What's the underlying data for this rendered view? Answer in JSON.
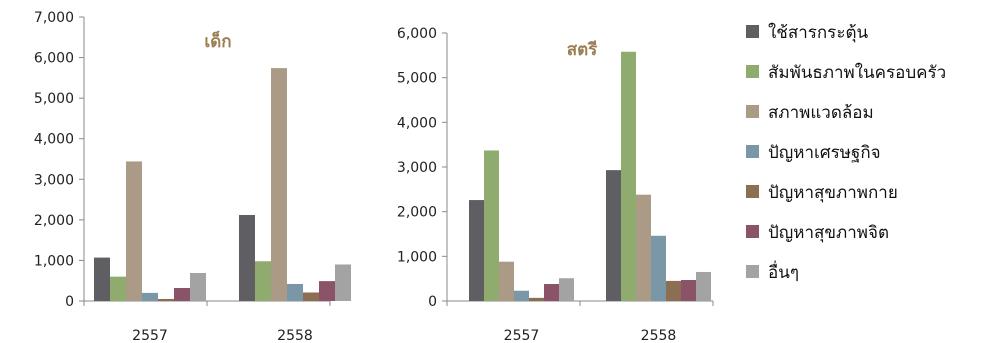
{
  "chart_data": [
    {
      "type": "bar",
      "title": "เด็ก",
      "categories": [
        "2557",
        "2558"
      ],
      "ylim": [
        0,
        7000
      ],
      "yticks": [
        "0",
        "1,000",
        "2,000",
        "3,000",
        "4,000",
        "5,000",
        "6,000",
        "7,000"
      ],
      "series": [
        {
          "name": "ใช้สารกระตุ้น",
          "values": [
            1070,
            2120
          ]
        },
        {
          "name": "สัมพันธภาพในครอบครัว",
          "values": [
            600,
            980
          ]
        },
        {
          "name": "สภาพแวดล้อม",
          "values": [
            3440,
            5740
          ]
        },
        {
          "name": "ปัญหาเศรษฐกิจ",
          "values": [
            200,
            420
          ]
        },
        {
          "name": "ปัญหาสุขภาพกาย",
          "values": [
            50,
            210
          ]
        },
        {
          "name": "ปัญหาสุขภาพจิต",
          "values": [
            320,
            490
          ]
        },
        {
          "name": "อื่นๆ",
          "values": [
            690,
            900
          ]
        }
      ]
    },
    {
      "type": "bar",
      "title": "สตรี",
      "categories": [
        "2557",
        "2558"
      ],
      "ylim": [
        0,
        6000
      ],
      "yticks": [
        "0",
        "1,000",
        "2,000",
        "3,000",
        "4,000",
        "5,000",
        "6,000"
      ],
      "series": [
        {
          "name": "ใช้สารกระตุ้น",
          "values": [
            2260,
            2930
          ]
        },
        {
          "name": "สัมพันธภาพในครอบครัว",
          "values": [
            3370,
            5580
          ]
        },
        {
          "name": "สภาพแวดล้อม",
          "values": [
            880,
            2380
          ]
        },
        {
          "name": "ปัญหาเศรษฐกิจ",
          "values": [
            230,
            1460
          ]
        },
        {
          "name": "ปัญหาสุขภาพกาย",
          "values": [
            70,
            450
          ]
        },
        {
          "name": "ปัญหาสุขภาพจิต",
          "values": [
            380,
            470
          ]
        },
        {
          "name": "อื่นๆ",
          "values": [
            510,
            650
          ]
        }
      ]
    }
  ],
  "legend": {
    "placement": "right",
    "items": [
      {
        "label": "ใช้สารกระตุ้น",
        "color": "#5f5f63"
      },
      {
        "label": "สัมพันธภาพในครอบครัว",
        "color": "#8fab6e"
      },
      {
        "label": "สภาพแวดล้อม",
        "color": "#ab9a85"
      },
      {
        "label": "ปัญหาเศรษฐกิจ",
        "color": "#7a97a8"
      },
      {
        "label": "ปัญหาสุขภาพกาย",
        "color": "#8c6f52"
      },
      {
        "label": "ปัญหาสุขภาพจิต",
        "color": "#8a5367"
      },
      {
        "label": "อื่นๆ",
        "color": "#a3a3a3"
      }
    ]
  }
}
